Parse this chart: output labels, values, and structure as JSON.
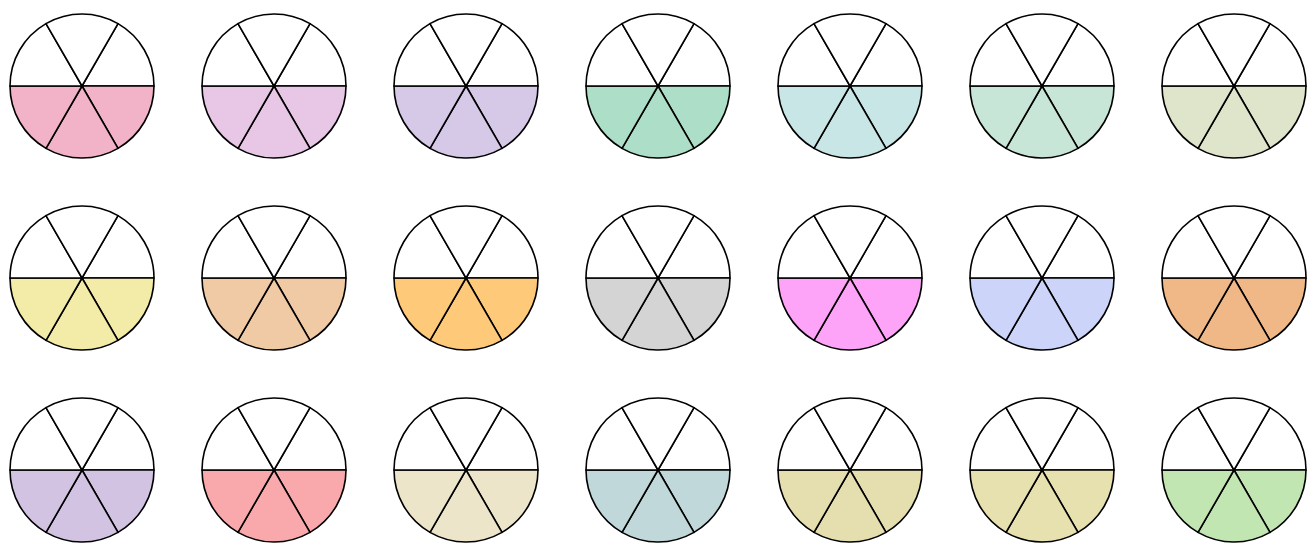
{
  "chart_data": [
    {
      "type": "pie",
      "categories": [
        null,
        null,
        null,
        null,
        null,
        null
      ],
      "values": [
        16.667,
        16.667,
        16.667,
        16.667,
        16.667,
        16.667
      ],
      "colors": [
        "#ffffff",
        "#f2b3c9",
        "#f2b3c9",
        "#f2b3c9",
        "#ffffff",
        "#ffffff"
      ]
    },
    {
      "type": "pie",
      "categories": [
        null,
        null,
        null,
        null,
        null,
        null
      ],
      "values": [
        16.667,
        16.667,
        16.667,
        16.667,
        16.667,
        16.667
      ],
      "colors": [
        "#ffffff",
        "#e8c6e5",
        "#e8c6e5",
        "#e8c6e5",
        "#ffffff",
        "#ffffff"
      ]
    },
    {
      "type": "pie",
      "categories": [
        null,
        null,
        null,
        null,
        null,
        null
      ],
      "values": [
        16.667,
        16.667,
        16.667,
        16.667,
        16.667,
        16.667
      ],
      "colors": [
        "#ffffff",
        "#d6c8e7",
        "#d6c8e7",
        "#d6c8e7",
        "#ffffff",
        "#ffffff"
      ]
    },
    {
      "type": "pie",
      "categories": [
        null,
        null,
        null,
        null,
        null,
        null
      ],
      "values": [
        16.667,
        16.667,
        16.667,
        16.667,
        16.667,
        16.667
      ],
      "colors": [
        "#ffffff",
        "#addfc8",
        "#addfc8",
        "#addfc8",
        "#ffffff",
        "#ffffff"
      ]
    },
    {
      "type": "pie",
      "categories": [
        null,
        null,
        null,
        null,
        null,
        null
      ],
      "values": [
        16.667,
        16.667,
        16.667,
        16.667,
        16.667,
        16.667
      ],
      "colors": [
        "#ffffff",
        "#c9e6e6",
        "#c9e6e6",
        "#c9e6e6",
        "#ffffff",
        "#ffffff"
      ]
    },
    {
      "type": "pie",
      "categories": [
        null,
        null,
        null,
        null,
        null,
        null
      ],
      "values": [
        16.667,
        16.667,
        16.667,
        16.667,
        16.667,
        16.667
      ],
      "colors": [
        "#ffffff",
        "#c8e6d8",
        "#c8e6d8",
        "#c8e6d8",
        "#ffffff",
        "#ffffff"
      ]
    },
    {
      "type": "pie",
      "categories": [
        null,
        null,
        null,
        null,
        null,
        null
      ],
      "values": [
        16.667,
        16.667,
        16.667,
        16.667,
        16.667,
        16.667
      ],
      "colors": [
        "#ffffff",
        "#dfe5cb",
        "#dfe5cb",
        "#dfe5cb",
        "#ffffff",
        "#ffffff"
      ]
    },
    {
      "type": "pie",
      "categories": [
        null,
        null,
        null,
        null,
        null,
        null
      ],
      "values": [
        16.667,
        16.667,
        16.667,
        16.667,
        16.667,
        16.667
      ],
      "colors": [
        "#ffffff",
        "#f2eca8",
        "#f2eca8",
        "#f2eca8",
        "#ffffff",
        "#ffffff"
      ]
    },
    {
      "type": "pie",
      "categories": [
        null,
        null,
        null,
        null,
        null,
        null
      ],
      "values": [
        16.667,
        16.667,
        16.667,
        16.667,
        16.667,
        16.667
      ],
      "colors": [
        "#ffffff",
        "#f0c9a5",
        "#f0c9a5",
        "#f0c9a5",
        "#ffffff",
        "#ffffff"
      ]
    },
    {
      "type": "pie",
      "categories": [
        null,
        null,
        null,
        null,
        null,
        null
      ],
      "values": [
        16.667,
        16.667,
        16.667,
        16.667,
        16.667,
        16.667
      ],
      "colors": [
        "#ffffff",
        "#ffc97a",
        "#ffc97a",
        "#ffc97a",
        "#ffffff",
        "#ffffff"
      ]
    },
    {
      "type": "pie",
      "categories": [
        null,
        null,
        null,
        null,
        null,
        null
      ],
      "values": [
        16.667,
        16.667,
        16.667,
        16.667,
        16.667,
        16.667
      ],
      "colors": [
        "#ffffff",
        "#d4d4d4",
        "#d4d4d4",
        "#d4d4d4",
        "#ffffff",
        "#ffffff"
      ]
    },
    {
      "type": "pie",
      "categories": [
        null,
        null,
        null,
        null,
        null,
        null
      ],
      "values": [
        16.667,
        16.667,
        16.667,
        16.667,
        16.667,
        16.667
      ],
      "colors": [
        "#ffffff",
        "#fda4f8",
        "#fda4f8",
        "#fda4f8",
        "#ffffff",
        "#ffffff"
      ]
    },
    {
      "type": "pie",
      "categories": [
        null,
        null,
        null,
        null,
        null,
        null
      ],
      "values": [
        16.667,
        16.667,
        16.667,
        16.667,
        16.667,
        16.667
      ],
      "colors": [
        "#ffffff",
        "#ccd5f9",
        "#ccd5f9",
        "#ccd5f9",
        "#ffffff",
        "#ffffff"
      ]
    },
    {
      "type": "pie",
      "categories": [
        null,
        null,
        null,
        null,
        null,
        null
      ],
      "values": [
        16.667,
        16.667,
        16.667,
        16.667,
        16.667,
        16.667
      ],
      "colors": [
        "#ffffff",
        "#efb886",
        "#efb886",
        "#efb886",
        "#ffffff",
        "#ffffff"
      ]
    },
    {
      "type": "pie",
      "categories": [
        null,
        null,
        null,
        null,
        null,
        null
      ],
      "values": [
        16.667,
        16.667,
        16.667,
        16.667,
        16.667,
        16.667
      ],
      "colors": [
        "#ffffff",
        "#d2c3e2",
        "#d2c3e2",
        "#d2c3e2",
        "#ffffff",
        "#ffffff"
      ]
    },
    {
      "type": "pie",
      "categories": [
        null,
        null,
        null,
        null,
        null,
        null
      ],
      "values": [
        16.667,
        16.667,
        16.667,
        16.667,
        16.667,
        16.667
      ],
      "colors": [
        "#ffffff",
        "#f9a9ab",
        "#f9a9ab",
        "#f9a9ab",
        "#ffffff",
        "#ffffff"
      ]
    },
    {
      "type": "pie",
      "categories": [
        null,
        null,
        null,
        null,
        null,
        null
      ],
      "values": [
        16.667,
        16.667,
        16.667,
        16.667,
        16.667,
        16.667
      ],
      "colors": [
        "#ffffff",
        "#ede5c9",
        "#ede5c9",
        "#ede5c9",
        "#ffffff",
        "#ffffff"
      ]
    },
    {
      "type": "pie",
      "categories": [
        null,
        null,
        null,
        null,
        null,
        null
      ],
      "values": [
        16.667,
        16.667,
        16.667,
        16.667,
        16.667,
        16.667
      ],
      "colors": [
        "#ffffff",
        "#c0d8d9",
        "#c0d8d9",
        "#c0d8d9",
        "#ffffff",
        "#ffffff"
      ]
    },
    {
      "type": "pie",
      "categories": [
        null,
        null,
        null,
        null,
        null,
        null
      ],
      "values": [
        16.667,
        16.667,
        16.667,
        16.667,
        16.667,
        16.667
      ],
      "colors": [
        "#ffffff",
        "#e5dfaf",
        "#e5dfaf",
        "#e5dfaf",
        "#ffffff",
        "#ffffff"
      ]
    },
    {
      "type": "pie",
      "categories": [
        null,
        null,
        null,
        null,
        null,
        null
      ],
      "values": [
        16.667,
        16.667,
        16.667,
        16.667,
        16.667,
        16.667
      ],
      "colors": [
        "#ffffff",
        "#e7e0af",
        "#e7e0af",
        "#e7e0af",
        "#ffffff",
        "#ffffff"
      ]
    },
    {
      "type": "pie",
      "categories": [
        null,
        null,
        null,
        null,
        null,
        null
      ],
      "values": [
        16.667,
        16.667,
        16.667,
        16.667,
        16.667,
        16.667
      ],
      "colors": [
        "#ffffff",
        "#c1e6b1",
        "#c1e6b1",
        "#c1e6b1",
        "#ffffff",
        "#ffffff"
      ]
    }
  ]
}
